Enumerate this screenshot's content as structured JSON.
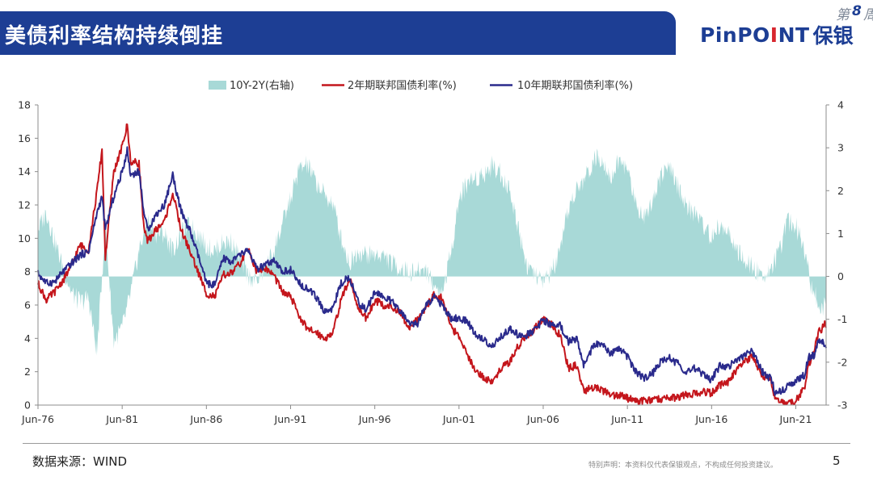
{
  "header": {
    "title": "美债利率结构持续倒挂",
    "logo_en_prefix": "PinPO",
    "logo_en_accent": "I",
    "logo_en_suffix": "NT",
    "logo_cn": "保银",
    "page_tag_prefix": "第",
    "page_tag_number": "8",
    "page_tag_suffix": "周"
  },
  "colors": {
    "brand_blue": "#1d3e94",
    "accent_red": "#d7262e",
    "series_spread": "#a8d9d7",
    "series_2y": "#c4161c",
    "series_10y": "#2a2a8c"
  },
  "chart_data": {
    "type": "line",
    "title": "",
    "xlabel": "",
    "ylabel": "",
    "x_tick_labels": [
      "Jun-76",
      "Jun-81",
      "Jun-86",
      "Jun-91",
      "Jun-96",
      "Jun-01",
      "Jun-06",
      "Jun-11",
      "Jun-16",
      "Jun-21"
    ],
    "x_tick_years": [
      1976.5,
      1981.5,
      1986.5,
      1991.5,
      1996.5,
      2001.5,
      2006.5,
      2011.5,
      2016.5,
      2021.5
    ],
    "x_range": [
      1976.5,
      2023.3
    ],
    "ylim_left": [
      0,
      18
    ],
    "y_ticks_left": [
      0,
      2,
      4,
      6,
      8,
      10,
      12,
      14,
      16,
      18
    ],
    "ylim_right": [
      -3,
      4
    ],
    "y_ticks_right": [
      -3,
      -2,
      -1,
      0,
      1,
      2,
      3,
      4
    ],
    "grid": false,
    "legend_position": "top",
    "series": [
      {
        "name": "10Y-2Y(右轴)",
        "type": "area",
        "axis": "right",
        "color": "#a8d9d7",
        "points": [
          [
            1976.5,
            1.1
          ],
          [
            1977.0,
            1.5
          ],
          [
            1977.5,
            0.8
          ],
          [
            1978.0,
            0.2
          ],
          [
            1978.5,
            -0.4
          ],
          [
            1979.0,
            -0.6
          ],
          [
            1979.5,
            -0.5
          ],
          [
            1980.0,
            -1.8
          ],
          [
            1980.5,
            1.2
          ],
          [
            1981.0,
            -1.5
          ],
          [
            1981.5,
            -1.2
          ],
          [
            1982.0,
            -0.4
          ],
          [
            1982.5,
            0.6
          ],
          [
            1983.0,
            1.3
          ],
          [
            1983.5,
            1.0
          ],
          [
            1984.0,
            1.0
          ],
          [
            1984.5,
            0.6
          ],
          [
            1985.0,
            1.0
          ],
          [
            1985.5,
            1.2
          ],
          [
            1986.0,
            1.0
          ],
          [
            1986.5,
            0.7
          ],
          [
            1987.0,
            0.6
          ],
          [
            1987.5,
            0.8
          ],
          [
            1988.0,
            0.8
          ],
          [
            1988.5,
            0.4
          ],
          [
            1989.0,
            0.0
          ],
          [
            1989.5,
            -0.1
          ],
          [
            1990.0,
            0.2
          ],
          [
            1990.5,
            0.6
          ],
          [
            1991.0,
            1.2
          ],
          [
            1991.5,
            1.8
          ],
          [
            1992.0,
            2.5
          ],
          [
            1992.5,
            2.6
          ],
          [
            1993.0,
            2.2
          ],
          [
            1993.5,
            1.9
          ],
          [
            1994.0,
            1.7
          ],
          [
            1994.5,
            0.9
          ],
          [
            1995.0,
            0.3
          ],
          [
            1995.5,
            0.6
          ],
          [
            1996.0,
            0.5
          ],
          [
            1996.5,
            0.5
          ],
          [
            1997.0,
            0.5
          ],
          [
            1997.5,
            0.3
          ],
          [
            1998.0,
            0.2
          ],
          [
            1998.5,
            0.1
          ],
          [
            1999.0,
            0.1
          ],
          [
            1999.5,
            0.2
          ],
          [
            2000.0,
            -0.2
          ],
          [
            2000.5,
            -0.4
          ],
          [
            2001.0,
            0.5
          ],
          [
            2001.5,
            1.8
          ],
          [
            2002.0,
            2.2
          ],
          [
            2002.5,
            2.3
          ],
          [
            2003.0,
            2.4
          ],
          [
            2003.5,
            2.6
          ],
          [
            2004.0,
            2.4
          ],
          [
            2004.5,
            2.0
          ],
          [
            2005.0,
            1.2
          ],
          [
            2005.5,
            0.3
          ],
          [
            2006.0,
            0.0
          ],
          [
            2006.5,
            -0.1
          ],
          [
            2007.0,
            0.1
          ],
          [
            2007.5,
            0.5
          ],
          [
            2008.0,
            1.6
          ],
          [
            2008.5,
            2.0
          ],
          [
            2009.0,
            2.3
          ],
          [
            2009.5,
            2.7
          ],
          [
            2010.0,
            2.8
          ],
          [
            2010.5,
            2.3
          ],
          [
            2011.0,
            2.7
          ],
          [
            2011.5,
            2.5
          ],
          [
            2012.0,
            1.7
          ],
          [
            2012.5,
            1.4
          ],
          [
            2013.0,
            1.8
          ],
          [
            2013.5,
            2.4
          ],
          [
            2014.0,
            2.5
          ],
          [
            2014.5,
            2.1
          ],
          [
            2015.0,
            1.6
          ],
          [
            2015.5,
            1.5
          ],
          [
            2016.0,
            1.2
          ],
          [
            2016.5,
            0.9
          ],
          [
            2017.0,
            1.2
          ],
          [
            2017.5,
            1.0
          ],
          [
            2018.0,
            0.6
          ],
          [
            2018.5,
            0.3
          ],
          [
            2019.0,
            0.2
          ],
          [
            2019.5,
            0.0
          ],
          [
            2020.0,
            0.2
          ],
          [
            2020.5,
            0.5
          ],
          [
            2021.0,
            1.3
          ],
          [
            2021.5,
            1.2
          ],
          [
            2022.0,
            0.7
          ],
          [
            2022.4,
            -0.2
          ],
          [
            2022.8,
            -0.5
          ],
          [
            2023.0,
            -0.8
          ],
          [
            2023.3,
            -0.6
          ]
        ]
      },
      {
        "name": "2年期联邦国债利率(%)",
        "type": "line",
        "axis": "left",
        "color": "#c4161c",
        "points": [
          [
            1976.5,
            7.3
          ],
          [
            1977.0,
            6.3
          ],
          [
            1977.5,
            6.8
          ],
          [
            1978.0,
            7.5
          ],
          [
            1978.5,
            8.4
          ],
          [
            1979.0,
            9.6
          ],
          [
            1979.5,
            9.3
          ],
          [
            1980.0,
            12.8
          ],
          [
            1980.3,
            15.3
          ],
          [
            1980.5,
            8.8
          ],
          [
            1981.0,
            14.0
          ],
          [
            1981.5,
            15.5
          ],
          [
            1981.8,
            16.8
          ],
          [
            1982.0,
            14.6
          ],
          [
            1982.5,
            14.5
          ],
          [
            1982.8,
            10.5
          ],
          [
            1983.0,
            9.8
          ],
          [
            1983.5,
            10.5
          ],
          [
            1984.0,
            11.0
          ],
          [
            1984.5,
            12.7
          ],
          [
            1985.0,
            10.5
          ],
          [
            1985.5,
            9.3
          ],
          [
            1986.0,
            8.0
          ],
          [
            1986.5,
            6.7
          ],
          [
            1987.0,
            6.5
          ],
          [
            1987.5,
            7.8
          ],
          [
            1988.0,
            7.9
          ],
          [
            1988.5,
            8.5
          ],
          [
            1989.0,
            9.4
          ],
          [
            1989.5,
            8.0
          ],
          [
            1990.0,
            8.2
          ],
          [
            1990.5,
            7.8
          ],
          [
            1991.0,
            6.8
          ],
          [
            1991.5,
            6.5
          ],
          [
            1992.0,
            5.4
          ],
          [
            1992.5,
            4.5
          ],
          [
            1993.0,
            4.4
          ],
          [
            1993.5,
            4.0
          ],
          [
            1994.0,
            4.3
          ],
          [
            1994.5,
            6.3
          ],
          [
            1995.0,
            7.6
          ],
          [
            1995.5,
            5.9
          ],
          [
            1996.0,
            5.2
          ],
          [
            1996.5,
            6.3
          ],
          [
            1997.0,
            6.0
          ],
          [
            1997.5,
            5.9
          ],
          [
            1998.0,
            5.5
          ],
          [
            1998.5,
            4.6
          ],
          [
            1999.0,
            5.2
          ],
          [
            1999.5,
            5.8
          ],
          [
            2000.0,
            6.6
          ],
          [
            2000.5,
            6.4
          ],
          [
            2001.0,
            4.8
          ],
          [
            2001.5,
            4.0
          ],
          [
            2002.0,
            3.0
          ],
          [
            2002.5,
            2.1
          ],
          [
            2003.0,
            1.6
          ],
          [
            2003.5,
            1.4
          ],
          [
            2004.0,
            2.2
          ],
          [
            2004.5,
            2.6
          ],
          [
            2005.0,
            3.5
          ],
          [
            2005.5,
            4.1
          ],
          [
            2006.0,
            4.6
          ],
          [
            2006.5,
            5.1
          ],
          [
            2007.0,
            4.8
          ],
          [
            2007.5,
            4.2
          ],
          [
            2008.0,
            2.2
          ],
          [
            2008.5,
            2.4
          ],
          [
            2008.9,
            0.8
          ],
          [
            2009.5,
            1.1
          ],
          [
            2010.0,
            0.9
          ],
          [
            2010.5,
            0.6
          ],
          [
            2011.0,
            0.6
          ],
          [
            2011.5,
            0.4
          ],
          [
            2012.0,
            0.25
          ],
          [
            2013.0,
            0.3
          ],
          [
            2014.0,
            0.4
          ],
          [
            2014.5,
            0.5
          ],
          [
            2015.0,
            0.6
          ],
          [
            2016.0,
            0.8
          ],
          [
            2016.5,
            0.7
          ],
          [
            2017.0,
            1.2
          ],
          [
            2017.5,
            1.4
          ],
          [
            2018.0,
            2.1
          ],
          [
            2018.5,
            2.6
          ],
          [
            2018.9,
            2.9
          ],
          [
            2019.5,
            1.8
          ],
          [
            2020.0,
            1.5
          ],
          [
            2020.3,
            0.3
          ],
          [
            2021.0,
            0.15
          ],
          [
            2021.5,
            0.25
          ],
          [
            2022.0,
            1.0
          ],
          [
            2022.3,
            2.5
          ],
          [
            2022.6,
            3.4
          ],
          [
            2022.9,
            4.5
          ],
          [
            2023.0,
            4.3
          ],
          [
            2023.1,
            4.9
          ],
          [
            2023.3,
            4.8
          ]
        ]
      },
      {
        "name": "10年期联邦国债利率(%)",
        "type": "line",
        "axis": "left",
        "color": "#2a2a8c",
        "points": [
          [
            1976.5,
            7.9
          ],
          [
            1977.0,
            7.3
          ],
          [
            1977.5,
            7.4
          ],
          [
            1978.0,
            8.0
          ],
          [
            1978.5,
            8.5
          ],
          [
            1979.0,
            9.0
          ],
          [
            1979.5,
            9.2
          ],
          [
            1980.0,
            11.5
          ],
          [
            1980.3,
            12.5
          ],
          [
            1980.5,
            10.5
          ],
          [
            1981.0,
            12.5
          ],
          [
            1981.5,
            14.0
          ],
          [
            1981.8,
            15.3
          ],
          [
            1982.0,
            13.8
          ],
          [
            1982.5,
            14.0
          ],
          [
            1982.8,
            11.5
          ],
          [
            1983.0,
            10.5
          ],
          [
            1983.5,
            11.4
          ],
          [
            1984.0,
            12.0
          ],
          [
            1984.5,
            13.8
          ],
          [
            1985.0,
            11.6
          ],
          [
            1985.5,
            10.5
          ],
          [
            1986.0,
            9.0
          ],
          [
            1986.5,
            7.3
          ],
          [
            1987.0,
            7.2
          ],
          [
            1987.5,
            8.8
          ],
          [
            1988.0,
            8.6
          ],
          [
            1988.5,
            9.0
          ],
          [
            1989.0,
            9.3
          ],
          [
            1989.5,
            8.1
          ],
          [
            1990.0,
            8.4
          ],
          [
            1990.5,
            8.6
          ],
          [
            1991.0,
            8.0
          ],
          [
            1991.5,
            8.1
          ],
          [
            1992.0,
            7.3
          ],
          [
            1992.5,
            7.0
          ],
          [
            1993.0,
            6.5
          ],
          [
            1993.5,
            5.6
          ],
          [
            1994.0,
            5.8
          ],
          [
            1994.5,
            7.3
          ],
          [
            1995.0,
            7.7
          ],
          [
            1995.5,
            6.2
          ],
          [
            1996.0,
            5.7
          ],
          [
            1996.5,
            6.8
          ],
          [
            1997.0,
            6.5
          ],
          [
            1997.5,
            6.2
          ],
          [
            1998.0,
            5.6
          ],
          [
            1998.5,
            5.0
          ],
          [
            1999.0,
            4.8
          ],
          [
            1999.5,
            5.9
          ],
          [
            2000.0,
            6.5
          ],
          [
            2000.5,
            6.0
          ],
          [
            2001.0,
            5.2
          ],
          [
            2001.5,
            5.2
          ],
          [
            2002.0,
            5.0
          ],
          [
            2002.5,
            4.2
          ],
          [
            2003.0,
            3.9
          ],
          [
            2003.5,
            3.5
          ],
          [
            2004.0,
            4.1
          ],
          [
            2004.5,
            4.6
          ],
          [
            2005.0,
            4.2
          ],
          [
            2005.5,
            4.2
          ],
          [
            2006.0,
            4.5
          ],
          [
            2006.5,
            5.1
          ],
          [
            2007.0,
            4.8
          ],
          [
            2007.5,
            4.8
          ],
          [
            2008.0,
            3.8
          ],
          [
            2008.5,
            4.0
          ],
          [
            2008.9,
            2.4
          ],
          [
            2009.5,
            3.6
          ],
          [
            2010.0,
            3.7
          ],
          [
            2010.5,
            3.0
          ],
          [
            2011.0,
            3.4
          ],
          [
            2011.5,
            2.9
          ],
          [
            2012.0,
            2.0
          ],
          [
            2012.5,
            1.6
          ],
          [
            2013.0,
            1.9
          ],
          [
            2013.5,
            2.6
          ],
          [
            2014.0,
            2.8
          ],
          [
            2014.5,
            2.5
          ],
          [
            2015.0,
            2.0
          ],
          [
            2015.5,
            2.2
          ],
          [
            2016.0,
            1.8
          ],
          [
            2016.5,
            1.5
          ],
          [
            2017.0,
            2.4
          ],
          [
            2017.5,
            2.3
          ],
          [
            2018.0,
            2.7
          ],
          [
            2018.5,
            3.0
          ],
          [
            2018.9,
            3.2
          ],
          [
            2019.5,
            2.0
          ],
          [
            2020.0,
            1.6
          ],
          [
            2020.3,
            0.7
          ],
          [
            2021.0,
            1.1
          ],
          [
            2021.5,
            1.4
          ],
          [
            2022.0,
            1.8
          ],
          [
            2022.3,
            2.9
          ],
          [
            2022.6,
            3.0
          ],
          [
            2022.9,
            4.0
          ],
          [
            2023.0,
            3.6
          ],
          [
            2023.1,
            3.8
          ],
          [
            2023.3,
            3.5
          ]
        ]
      }
    ]
  },
  "footer": {
    "source": "数据来源：WIND",
    "disclaimer": "特别声明：本资料仅代表保银观点，不构成任何投资建议。",
    "page_number": "5"
  }
}
